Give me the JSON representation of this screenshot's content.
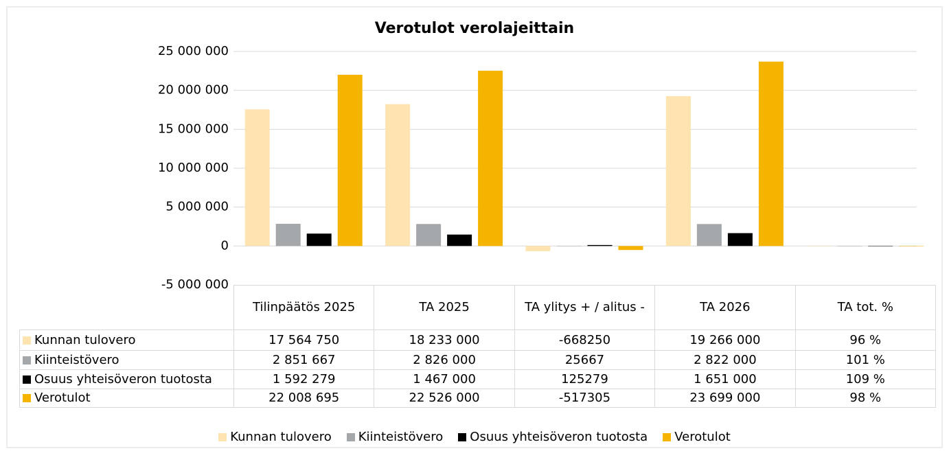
{
  "chart_data": {
    "type": "bar",
    "title": "Verotulot verolajeittain",
    "categories": [
      "Tilinpäätös 2025",
      "TA 2025",
      "TA ylitys + / alitus -",
      "TA 2026",
      "TA tot. %"
    ],
    "series": [
      {
        "name": "Kunnan tulovero",
        "color": "#fde4b1",
        "values": [
          17564750,
          18233000,
          -668250,
          19266000,
          96
        ],
        "value_labels": [
          "17 564 750",
          "18 233 000",
          "-668250",
          "19 266 000",
          "96 %"
        ]
      },
      {
        "name": "Kiinteistövero",
        "color": "#a5a8ab",
        "values": [
          2851667,
          2826000,
          25667,
          2822000,
          101
        ],
        "value_labels": [
          "2 851 667",
          "2 826 000",
          "25667",
          "2 822 000",
          "101 %"
        ]
      },
      {
        "name": "Osuus yhteisöveron tuotosta",
        "color": "#000000",
        "values": [
          1592279,
          1467000,
          125279,
          1651000,
          109
        ],
        "value_labels": [
          "1 592 279",
          "1 467 000",
          "125279",
          "1 651 000",
          "109 %"
        ]
      },
      {
        "name": "Verotulot",
        "color": "#f4b400",
        "values": [
          22008695,
          22526000,
          -517305,
          23699000,
          98
        ],
        "value_labels": [
          "22 008 695",
          "22 526 000",
          "-517305",
          "23 699 000",
          "98 %"
        ]
      }
    ],
    "ylim": [
      -5000000,
      25000000
    ],
    "yticks": [
      {
        "value": -5000000,
        "label": "-5 000 000"
      },
      0,
      {
        "value": 5000000,
        "label": "5 000 000"
      },
      {
        "value": 10000000,
        "label": "10 000 000"
      },
      {
        "value": 15000000,
        "label": "15 000 000"
      },
      {
        "value": 20000000,
        "label": "20 000 000"
      },
      {
        "value": 25000000,
        "label": "25 000 000"
      }
    ],
    "grid": true
  }
}
